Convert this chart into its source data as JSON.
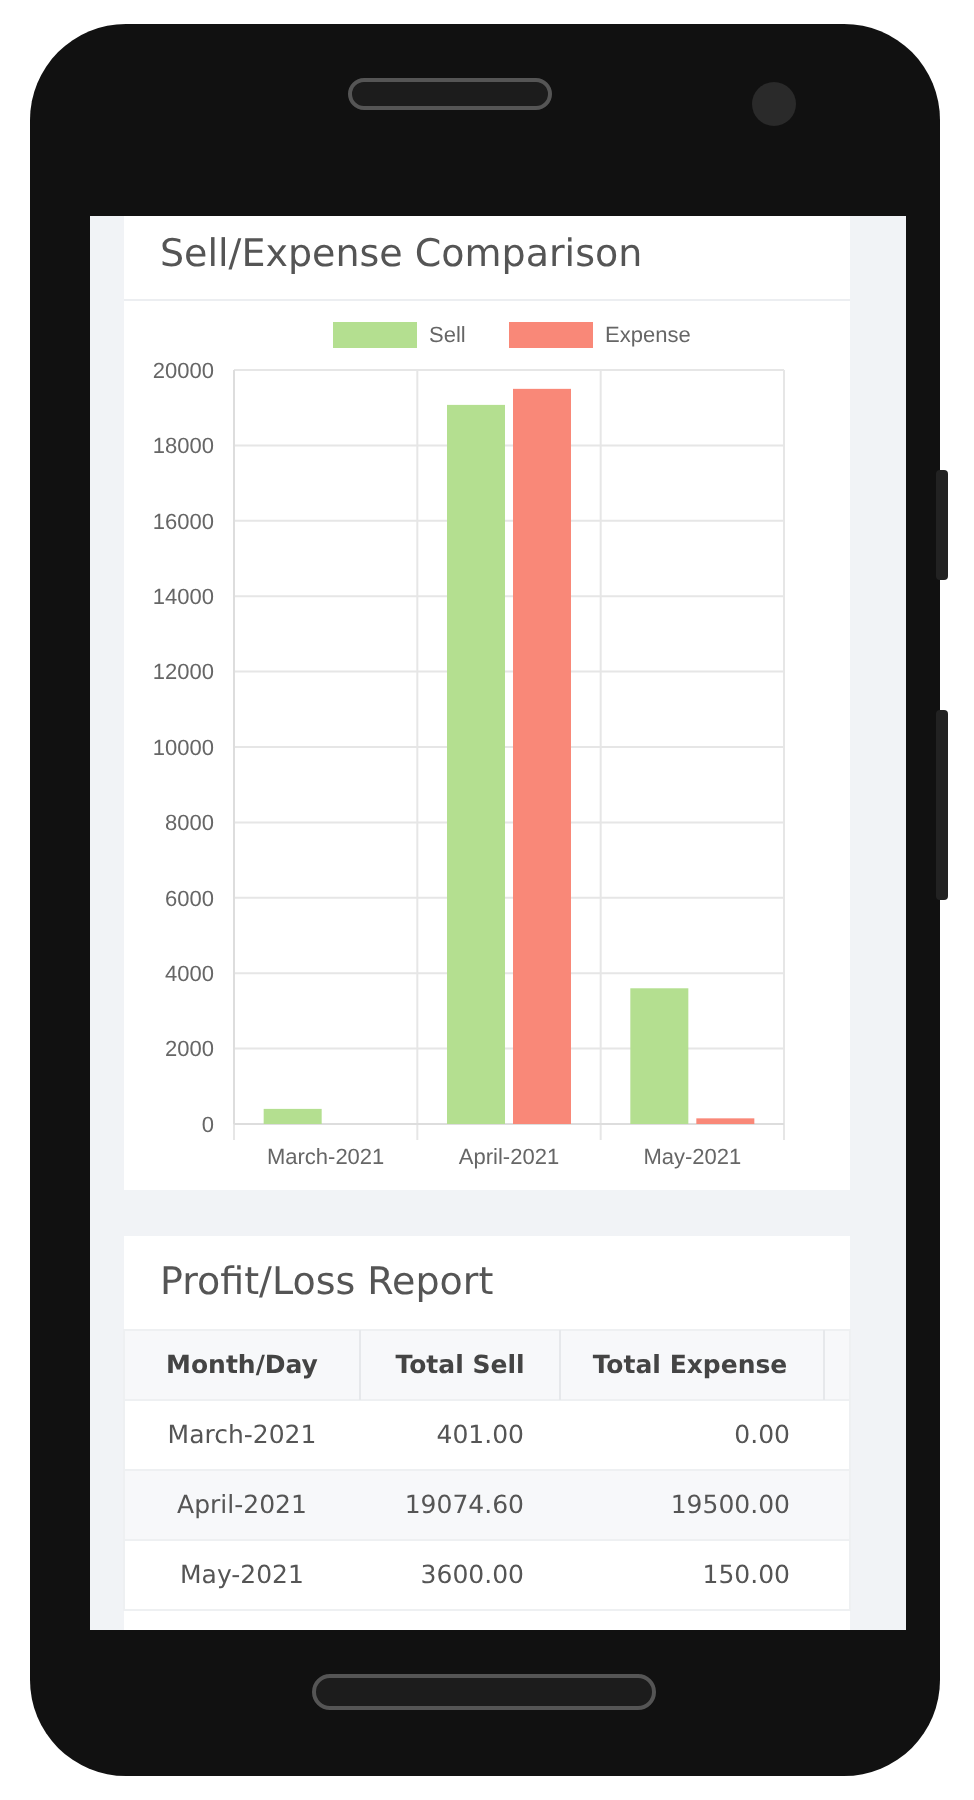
{
  "chart_data": [
    {
      "type": "bar",
      "title": "Sell/Expense Comparison",
      "categories": [
        "March-2021",
        "April-2021",
        "May-2021"
      ],
      "series": [
        {
          "name": "Sell",
          "color": "#b4df90",
          "values": [
            401,
            19074.6,
            3600
          ]
        },
        {
          "name": "Expense",
          "color": "#f98878",
          "values": [
            0,
            19500,
            150
          ]
        }
      ],
      "ylim": [
        0,
        20000
      ],
      "yticks": [
        0,
        2000,
        4000,
        6000,
        8000,
        10000,
        12000,
        14000,
        16000,
        18000,
        20000
      ],
      "grid": true,
      "legend": "top"
    },
    {
      "type": "other",
      "title": "Profit/Loss Report",
      "annotations": [
        "Month/Day",
        "Total Sell",
        "Total Expense",
        "March-2021",
        "401.00",
        "0.00",
        "April-2021",
        "19074.60",
        "19500.00",
        "May-2021",
        "3600.00",
        "150.00"
      ]
    }
  ]
}
